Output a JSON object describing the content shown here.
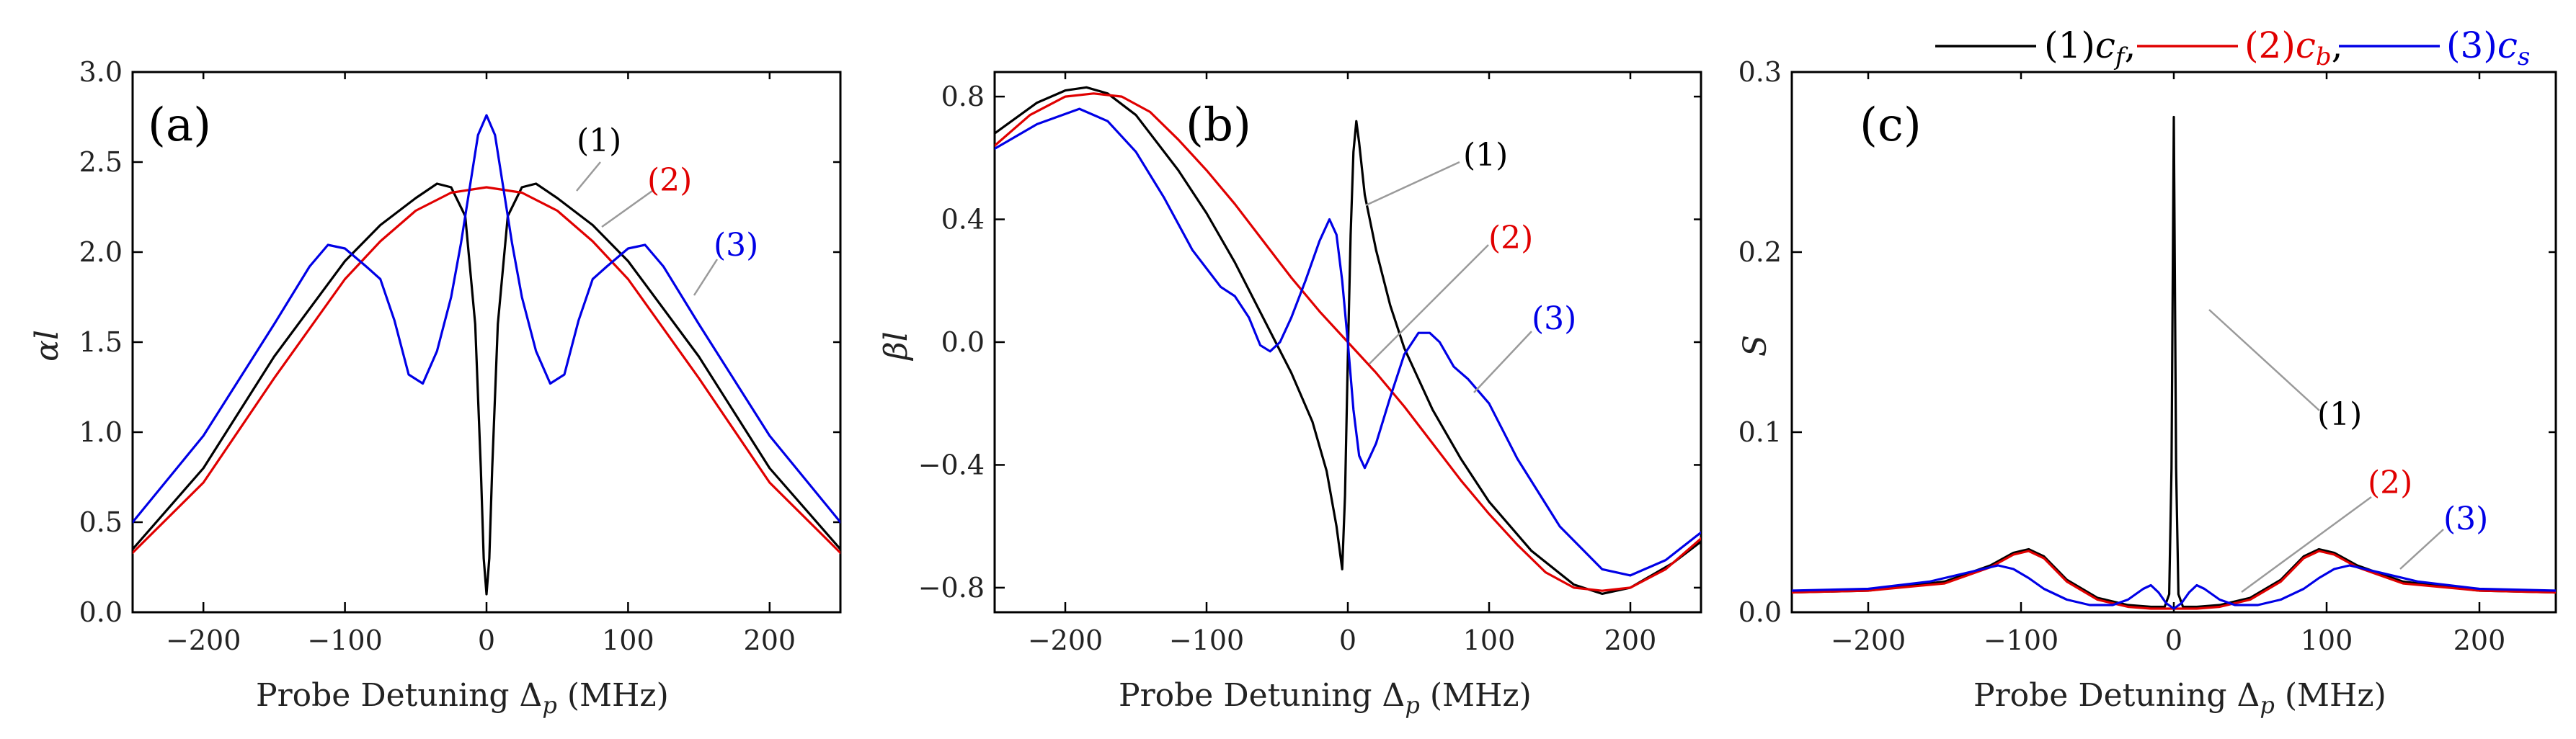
{
  "legend": {
    "items": [
      {
        "label": "(1)",
        "sym": "c",
        "sub": "f",
        "punct": ",",
        "color": "#000000"
      },
      {
        "label": "(2)",
        "sym": "c",
        "sub": "b",
        "punct": ",",
        "color": "#e00000"
      },
      {
        "label": "(3)",
        "sym": "c",
        "sub": "s",
        "punct": "",
        "color": "#0000e6"
      }
    ]
  },
  "chart_data": [
    {
      "type": "line",
      "panel_label": "(a)",
      "xlabel": "Probe Detuning  Δp (MHz)",
      "xlabel_main": "Probe Detuning  Δ",
      "xlabel_sub": "p",
      "xlabel_unit": " (MHz)",
      "ylabel": "αl",
      "xlim": [
        -250,
        250
      ],
      "ylim": [
        0.0,
        3.0
      ],
      "xticks": [
        -200,
        -100,
        0,
        100,
        200
      ],
      "xtick_labels": [
        "−200",
        "−100",
        "0",
        "100",
        "200"
      ],
      "yticks": [
        0.0,
        0.5,
        1.0,
        1.5,
        2.0,
        2.5,
        3.0
      ],
      "ytick_labels": [
        "0.0",
        "0.5",
        "1.0",
        "1.5",
        "2.0",
        "2.5",
        "3.0"
      ],
      "series": [
        {
          "name": "(1)",
          "color": "#000000",
          "x": [
            -250,
            -200,
            -150,
            -100,
            -75,
            -50,
            -35,
            -25,
            -15,
            -8,
            -4,
            -2,
            0,
            2,
            4,
            8,
            15,
            25,
            35,
            50,
            75,
            100,
            150,
            200,
            250
          ],
          "y": [
            0.35,
            0.8,
            1.42,
            1.95,
            2.15,
            2.3,
            2.38,
            2.36,
            2.2,
            1.6,
            0.8,
            0.3,
            0.1,
            0.3,
            0.8,
            1.6,
            2.2,
            2.36,
            2.38,
            2.3,
            2.15,
            1.95,
            1.42,
            0.8,
            0.35
          ]
        },
        {
          "name": "(2)",
          "color": "#e00000",
          "x": [
            -250,
            -200,
            -150,
            -100,
            -75,
            -50,
            -25,
            0,
            25,
            50,
            75,
            100,
            150,
            200,
            250
          ],
          "y": [
            0.33,
            0.72,
            1.3,
            1.85,
            2.06,
            2.23,
            2.33,
            2.36,
            2.33,
            2.23,
            2.06,
            1.85,
            1.3,
            0.72,
            0.33
          ]
        },
        {
          "name": "(3)",
          "color": "#0000e6",
          "x": [
            -250,
            -200,
            -150,
            -125,
            -112,
            -100,
            -85,
            -75,
            -65,
            -55,
            -45,
            -35,
            -25,
            -18,
            -12,
            -6,
            0,
            6,
            12,
            18,
            25,
            35,
            45,
            55,
            65,
            75,
            85,
            100,
            112,
            125,
            150,
            200,
            250
          ],
          "y": [
            0.5,
            0.98,
            1.6,
            1.92,
            2.04,
            2.02,
            1.92,
            1.85,
            1.62,
            1.32,
            1.27,
            1.45,
            1.75,
            2.05,
            2.35,
            2.65,
            2.76,
            2.65,
            2.35,
            2.05,
            1.75,
            1.45,
            1.27,
            1.32,
            1.62,
            1.85,
            1.92,
            2.02,
            2.04,
            1.92,
            1.6,
            0.98,
            0.5
          ]
        }
      ],
      "annotations": [
        {
          "text": "(1)",
          "color": "#000000"
        },
        {
          "text": "(2)",
          "color": "#e00000"
        },
        {
          "text": "(3)",
          "color": "#0000e6"
        }
      ]
    },
    {
      "type": "line",
      "panel_label": "(b)",
      "xlabel": "Probe Detuning  Δp (MHz)",
      "xlabel_main": "Probe Detuning  Δ",
      "xlabel_sub": "p",
      "xlabel_unit": " (MHz)",
      "ylabel": "βl",
      "xlim": [
        -250,
        250
      ],
      "ylim": [
        -0.88,
        0.88
      ],
      "xticks": [
        -200,
        -100,
        0,
        100,
        200
      ],
      "xtick_labels": [
        "−200",
        "−100",
        "0",
        "100",
        "200"
      ],
      "yticks": [
        -0.8,
        -0.4,
        0.0,
        0.4,
        0.8
      ],
      "ytick_labels": [
        "−0.8",
        "−0.4",
        "0.0",
        "0.4",
        "0.8"
      ],
      "series": [
        {
          "name": "(1)",
          "color": "#000000",
          "x": [
            -250,
            -220,
            -200,
            -185,
            -170,
            -150,
            -120,
            -100,
            -80,
            -60,
            -40,
            -25,
            -15,
            -8,
            -4,
            -2,
            0,
            2,
            4,
            6,
            8,
            12,
            20,
            30,
            40,
            60,
            80,
            100,
            130,
            160,
            180,
            200,
            230,
            250
          ],
          "y": [
            0.68,
            0.78,
            0.82,
            0.83,
            0.81,
            0.74,
            0.56,
            0.42,
            0.26,
            0.08,
            -0.1,
            -0.26,
            -0.42,
            -0.6,
            -0.74,
            -0.5,
            -0.05,
            0.35,
            0.62,
            0.72,
            0.65,
            0.48,
            0.3,
            0.12,
            -0.02,
            -0.22,
            -0.38,
            -0.52,
            -0.68,
            -0.79,
            -0.82,
            -0.8,
            -0.72,
            -0.65
          ]
        },
        {
          "name": "(2)",
          "color": "#e00000",
          "x": [
            -250,
            -225,
            -200,
            -180,
            -160,
            -140,
            -120,
            -100,
            -80,
            -60,
            -40,
            -20,
            0,
            20,
            40,
            60,
            80,
            100,
            120,
            140,
            160,
            180,
            200,
            225,
            250
          ],
          "y": [
            0.64,
            0.74,
            0.8,
            0.81,
            0.8,
            0.75,
            0.66,
            0.56,
            0.45,
            0.33,
            0.21,
            0.1,
            0.0,
            -0.1,
            -0.21,
            -0.33,
            -0.45,
            -0.56,
            -0.66,
            -0.75,
            -0.8,
            -0.81,
            -0.8,
            -0.74,
            -0.64
          ]
        },
        {
          "name": "(3)",
          "color": "#0000e6",
          "x": [
            -250,
            -220,
            -190,
            -170,
            -150,
            -130,
            -110,
            -90,
            -80,
            -70,
            -62,
            -55,
            -48,
            -40,
            -30,
            -20,
            -13,
            -8,
            -4,
            0,
            4,
            8,
            12,
            20,
            30,
            40,
            50,
            58,
            65,
            75,
            85,
            100,
            120,
            150,
            180,
            200,
            225,
            250
          ],
          "y": [
            0.63,
            0.71,
            0.76,
            0.72,
            0.62,
            0.47,
            0.3,
            0.18,
            0.15,
            0.08,
            -0.01,
            -0.03,
            0.0,
            0.08,
            0.2,
            0.33,
            0.4,
            0.35,
            0.2,
            0.0,
            -0.22,
            -0.37,
            -0.41,
            -0.33,
            -0.18,
            -0.04,
            0.03,
            0.03,
            0.0,
            -0.08,
            -0.12,
            -0.2,
            -0.38,
            -0.6,
            -0.74,
            -0.76,
            -0.71,
            -0.62
          ]
        }
      ],
      "annotations": [
        {
          "text": "(1)",
          "color": "#000000"
        },
        {
          "text": "(2)",
          "color": "#e00000"
        },
        {
          "text": "(3)",
          "color": "#0000e6"
        }
      ]
    },
    {
      "type": "line",
      "panel_label": "(c)",
      "xlabel": "Probe Detuning  Δp (MHz)",
      "xlabel_main": "Probe Detuning  Δ",
      "xlabel_sub": "p",
      "xlabel_unit": " (MHz)",
      "ylabel": "S",
      "xlim": [
        -250,
        250
      ],
      "ylim": [
        0.0,
        0.3
      ],
      "xticks": [
        -200,
        -100,
        0,
        100,
        200
      ],
      "xtick_labels": [
        "−200",
        "−100",
        "0",
        "100",
        "200"
      ],
      "yticks": [
        0.0,
        0.1,
        0.2,
        0.3
      ],
      "ytick_labels": [
        "0.0",
        "0.1",
        "0.2",
        "0.3"
      ],
      "series": [
        {
          "name": "(1)",
          "color": "#000000",
          "x": [
            -250,
            -200,
            -150,
            -120,
            -105,
            -95,
            -85,
            -70,
            -50,
            -30,
            -15,
            -6,
            -3,
            -1.5,
            0,
            1.5,
            3,
            6,
            15,
            30,
            50,
            70,
            85,
            95,
            105,
            120,
            150,
            200,
            250
          ],
          "y": [
            0.011,
            0.012,
            0.017,
            0.026,
            0.033,
            0.035,
            0.031,
            0.018,
            0.008,
            0.004,
            0.003,
            0.003,
            0.01,
            0.08,
            0.275,
            0.08,
            0.01,
            0.003,
            0.003,
            0.004,
            0.008,
            0.018,
            0.031,
            0.035,
            0.033,
            0.026,
            0.017,
            0.012,
            0.011
          ]
        },
        {
          "name": "(2)",
          "color": "#e00000",
          "x": [
            -250,
            -200,
            -150,
            -120,
            -105,
            -95,
            -85,
            -70,
            -50,
            -30,
            -15,
            0,
            15,
            30,
            50,
            70,
            85,
            95,
            105,
            120,
            150,
            200,
            250
          ],
          "y": [
            0.011,
            0.012,
            0.016,
            0.025,
            0.032,
            0.034,
            0.03,
            0.017,
            0.007,
            0.003,
            0.002,
            0.002,
            0.002,
            0.003,
            0.007,
            0.017,
            0.03,
            0.034,
            0.032,
            0.025,
            0.016,
            0.012,
            0.011
          ]
        },
        {
          "name": "(3)",
          "color": "#0000e6",
          "x": [
            -250,
            -200,
            -160,
            -130,
            -115,
            -105,
            -95,
            -85,
            -70,
            -55,
            -40,
            -30,
            -20,
            -15,
            -10,
            -5,
            0,
            5,
            10,
            15,
            20,
            30,
            40,
            55,
            70,
            85,
            95,
            105,
            115,
            130,
            160,
            200,
            250
          ],
          "y": [
            0.012,
            0.013,
            0.017,
            0.023,
            0.026,
            0.024,
            0.019,
            0.013,
            0.007,
            0.004,
            0.004,
            0.007,
            0.013,
            0.015,
            0.011,
            0.005,
            0.002,
            0.005,
            0.011,
            0.015,
            0.013,
            0.007,
            0.004,
            0.004,
            0.007,
            0.013,
            0.019,
            0.024,
            0.026,
            0.023,
            0.017,
            0.013,
            0.012
          ]
        }
      ],
      "annotations": [
        {
          "text": "(1)",
          "color": "#000000"
        },
        {
          "text": "(2)",
          "color": "#e00000"
        },
        {
          "text": "(3)",
          "color": "#0000e6"
        }
      ]
    }
  ]
}
